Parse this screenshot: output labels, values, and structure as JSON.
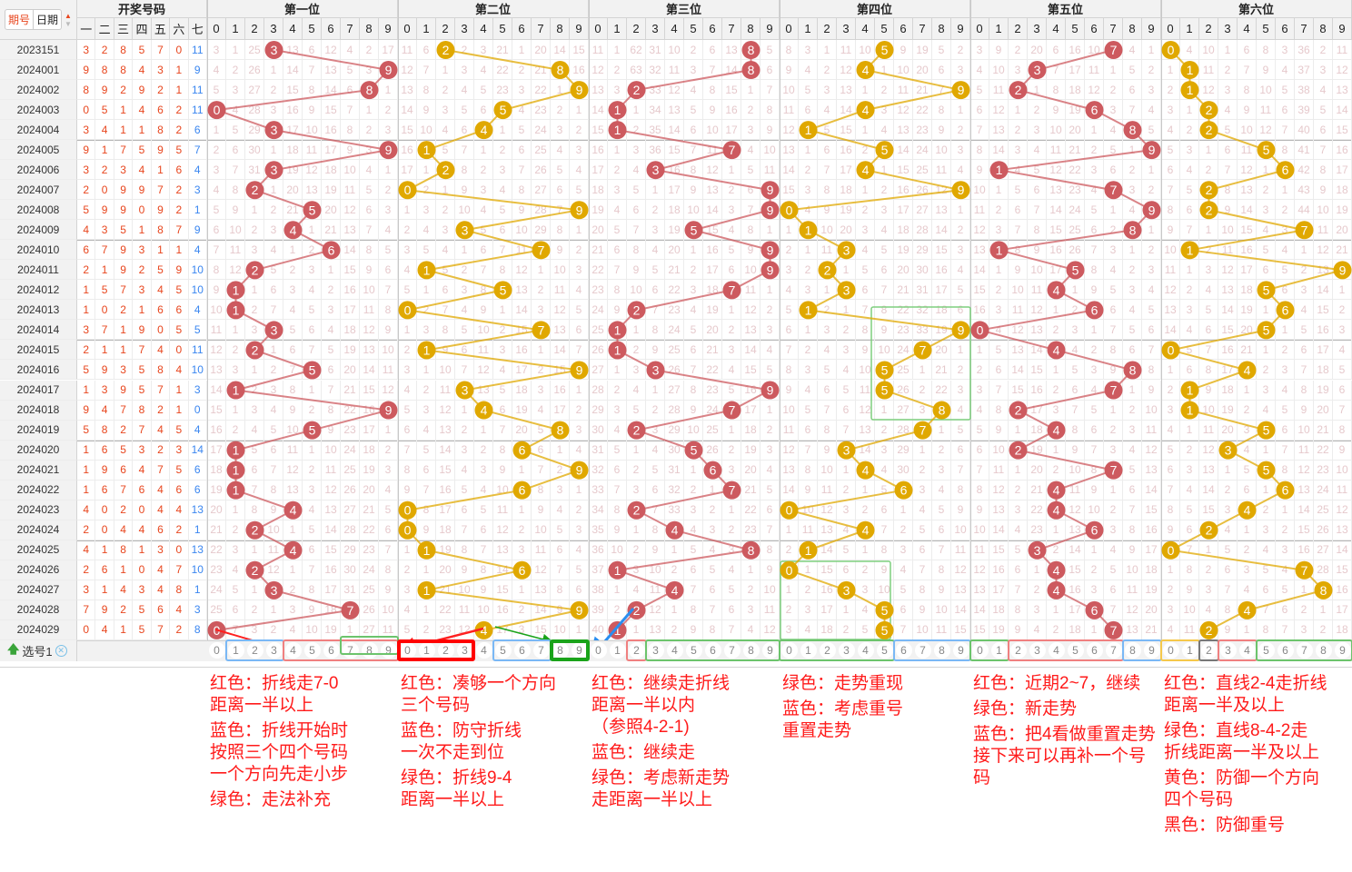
{
  "header": {
    "period_btn": "期号",
    "date_btn": "日期",
    "draw_title": "开奖号码",
    "draw_cols": [
      "一",
      "二",
      "三",
      "四",
      "五",
      "六",
      "七"
    ],
    "positions": [
      "第一位",
      "第二位",
      "第三位",
      "第四位",
      "第五位",
      "第六位"
    ],
    "digits": [
      "0",
      "1",
      "2",
      "3",
      "4",
      "5",
      "6",
      "7",
      "8",
      "9"
    ]
  },
  "colors": {
    "red_ball": "#cd5a5f",
    "yellow_ball": "#e0a800",
    "annotation": "#ff1a1a"
  },
  "position_ball_colors": [
    "red",
    "yellow",
    "red",
    "yellow",
    "red",
    "yellow"
  ],
  "rows": [
    {
      "period": "2023151",
      "draw": [
        3,
        2,
        8,
        5,
        7,
        0,
        11
      ]
    },
    {
      "period": "2024001",
      "draw": [
        9,
        8,
        8,
        4,
        3,
        1,
        9
      ]
    },
    {
      "period": "2024002",
      "draw": [
        8,
        9,
        2,
        9,
        2,
        1,
        11
      ]
    },
    {
      "period": "2024003",
      "draw": [
        0,
        5,
        1,
        4,
        6,
        2,
        11
      ]
    },
    {
      "period": "2024004",
      "draw": [
        3,
        4,
        1,
        1,
        8,
        2,
        6
      ]
    },
    {
      "period": "2024005",
      "draw": [
        9,
        1,
        7,
        5,
        9,
        5,
        7
      ]
    },
    {
      "period": "2024006",
      "draw": [
        3,
        2,
        3,
        4,
        1,
        6,
        4
      ]
    },
    {
      "period": "2024007",
      "draw": [
        2,
        0,
        9,
        9,
        7,
        2,
        3
      ]
    },
    {
      "period": "2024008",
      "draw": [
        5,
        9,
        9,
        0,
        9,
        2,
        1
      ]
    },
    {
      "period": "2024009",
      "draw": [
        4,
        3,
        5,
        1,
        8,
        7,
        9
      ]
    },
    {
      "period": "2024010",
      "draw": [
        6,
        7,
        9,
        3,
        1,
        1,
        4
      ]
    },
    {
      "period": "2024011",
      "draw": [
        2,
        1,
        9,
        2,
        5,
        9,
        10
      ]
    },
    {
      "period": "2024012",
      "draw": [
        1,
        5,
        7,
        3,
        4,
        5,
        10
      ]
    },
    {
      "period": "2024013",
      "draw": [
        1,
        0,
        2,
        1,
        6,
        6,
        4
      ]
    },
    {
      "period": "2024014",
      "draw": [
        3,
        7,
        1,
        9,
        0,
        5,
        5
      ]
    },
    {
      "period": "2024015",
      "draw": [
        2,
        1,
        1,
        7,
        4,
        0,
        11
      ]
    },
    {
      "period": "2024016",
      "draw": [
        5,
        9,
        3,
        5,
        8,
        4,
        10
      ]
    },
    {
      "period": "2024017",
      "draw": [
        1,
        3,
        9,
        5,
        7,
        1,
        3
      ]
    },
    {
      "period": "2024018",
      "draw": [
        9,
        4,
        7,
        8,
        2,
        1,
        0
      ]
    },
    {
      "period": "2024019",
      "draw": [
        5,
        8,
        2,
        7,
        4,
        5,
        4
      ]
    },
    {
      "period": "2024020",
      "draw": [
        1,
        6,
        5,
        3,
        2,
        3,
        14
      ]
    },
    {
      "period": "2024021",
      "draw": [
        1,
        9,
        6,
        4,
        7,
        5,
        6
      ]
    },
    {
      "period": "2024022",
      "draw": [
        1,
        6,
        7,
        6,
        4,
        6,
        6
      ]
    },
    {
      "period": "2024023",
      "draw": [
        4,
        0,
        2,
        0,
        4,
        4,
        13
      ]
    },
    {
      "period": "2024024",
      "draw": [
        2,
        0,
        4,
        4,
        6,
        2,
        1
      ]
    },
    {
      "period": "2024025",
      "draw": [
        4,
        1,
        8,
        1,
        3,
        0,
        13
      ]
    },
    {
      "period": "2024026",
      "draw": [
        2,
        6,
        1,
        0,
        4,
        7,
        10
      ]
    },
    {
      "period": "2024027",
      "draw": [
        3,
        1,
        4,
        3,
        4,
        8,
        1
      ]
    },
    {
      "period": "2024028",
      "draw": [
        7,
        9,
        2,
        5,
        6,
        4,
        3
      ]
    },
    {
      "period": "2024029",
      "draw": [
        0,
        4,
        1,
        5,
        7,
        2,
        8
      ]
    }
  ],
  "first_row_omissions": [
    [
      3,
      1,
      25,
      0,
      13,
      6,
      12,
      4,
      2,
      17
    ],
    [
      11,
      6,
      0,
      2,
      3,
      21,
      1,
      20,
      14,
      15
    ],
    [
      11,
      1,
      62,
      31,
      10,
      2,
      6,
      13,
      0,
      5
    ],
    [
      8,
      3,
      1,
      11,
      10,
      0,
      9,
      19,
      5,
      2
    ],
    [
      3,
      9,
      2,
      20,
      6,
      16,
      10,
      0,
      4,
      1
    ],
    [
      0,
      4,
      10,
      1,
      6,
      8,
      3,
      36,
      2,
      11
    ]
  ],
  "footer": {
    "label": "选号1",
    "boxes": [
      {
        "pos": 0,
        "from": 1,
        "to": 3,
        "color": "#7ab8f5"
      },
      {
        "pos": 0,
        "from": 4,
        "to": 9,
        "color": "#f08080"
      },
      {
        "pos": 0,
        "from": 7,
        "to": 9,
        "color": "#6cc46c"
      },
      {
        "pos": 1,
        "from": 0,
        "to": 3,
        "color": "#ff0000"
      },
      {
        "pos": 1,
        "from": 5,
        "to": 7,
        "color": "#7ab8f5"
      },
      {
        "pos": 1,
        "from": 8,
        "to": 9,
        "color": "#1aa31a"
      },
      {
        "pos": 2,
        "from": 2,
        "to": 2,
        "color": "#f08080"
      },
      {
        "pos": 2,
        "from": 3,
        "to": 9,
        "color": "#6cc46c"
      },
      {
        "pos": 3,
        "from": 0,
        "to": 5,
        "color": "#6cc46c"
      },
      {
        "pos": 3,
        "from": 6,
        "to": 9,
        "color": "#7ab8f5"
      },
      {
        "pos": 4,
        "from": 0,
        "to": 1,
        "color": "#6cc46c"
      },
      {
        "pos": 4,
        "from": 2,
        "to": 7,
        "color": "#f08080"
      },
      {
        "pos": 4,
        "from": 8,
        "to": 9,
        "color": "#7ab8f5"
      },
      {
        "pos": 5,
        "from": 0,
        "to": 1,
        "color": "#f5c84a"
      },
      {
        "pos": 5,
        "from": 2,
        "to": 2,
        "color": "#777777"
      },
      {
        "pos": 5,
        "from": 3,
        "to": 4,
        "color": "#f08080"
      },
      {
        "pos": 5,
        "from": 5,
        "to": 9,
        "color": "#6cc46c"
      }
    ]
  },
  "annotations": [
    {
      "lines": [
        "红色：折线走7-0",
        "距离一半以上"
      ]
    },
    {
      "lines": [
        "红色：凑够一个方向",
        "三个号码"
      ]
    },
    {
      "lines": [
        "红色：继续走折线",
        "距离一半以内",
        "（参照4-2-1)"
      ]
    },
    {
      "lines": [
        "蓝色：继续走"
      ]
    },
    {
      "lines": [
        "蓝色：防守折线",
        "一次不走到位"
      ]
    },
    {
      "lines": [
        "蓝色：折线开始时",
        "按照三个四个号码",
        "一个方向先走小步"
      ]
    },
    {
      "lines": [
        "绿色：折线9-4",
        "距离一半以上"
      ]
    },
    {
      "lines": [
        "绿色：走法补充"
      ]
    },
    {
      "lines": [
        "绿色：考虑新走势",
        "走距离一半以上"
      ]
    },
    {
      "lines": [
        "绿色：走势重现"
      ]
    },
    {
      "lines": [
        "蓝色：考虑重号",
        "重置走势"
      ]
    },
    {
      "lines": [
        "红色：近期2~7，继续"
      ]
    },
    {
      "lines": [
        "绿色：新走势"
      ]
    },
    {
      "lines": [
        "蓝色：把4看做重置走势",
        "接下来可以再补一个号码"
      ]
    },
    {
      "lines": [
        "红色：直线2-4走折线",
        "距离一半及以上"
      ]
    },
    {
      "lines": [
        "绿色：直线8-4-2走",
        "折线距离一半及以上"
      ]
    },
    {
      "lines": [
        "黄色：防御一个方向",
        "四个号码"
      ]
    },
    {
      "lines": [
        "黑色：防御重号"
      ]
    }
  ]
}
